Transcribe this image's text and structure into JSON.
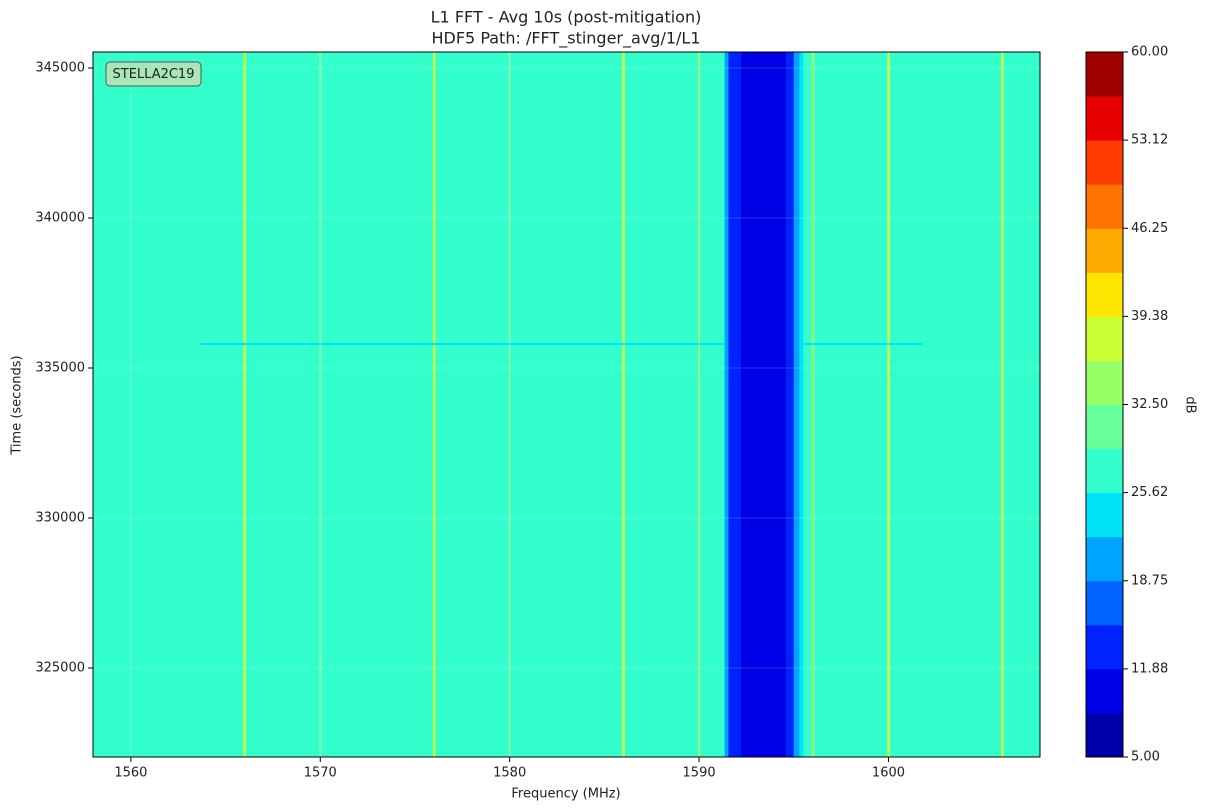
{
  "chart_data": {
    "type": "heatmap",
    "title": "L1 FFT - Avg 10s (post-mitigation)",
    "subtitle": "HDF5 Path: /FFT_stinger_avg/1/L1",
    "x_label": "Frequency (MHz)",
    "y_label": "Time (seconds)",
    "colorbar_label": "dB",
    "annotation": "STELLA2C19",
    "xlim": [
      1558,
      1608
    ],
    "xticks": [
      1560,
      1570,
      1580,
      1590,
      1600
    ],
    "ylim": [
      322033,
      345533
    ],
    "yticks": [
      325000,
      330000,
      335000,
      340000,
      345000
    ],
    "grid": true,
    "x_edges": [
      1558,
      1565.95,
      1566.08,
      1569.95,
      1570.05,
      1575.95,
      1576.08,
      1579.95,
      1580.05,
      1585.95,
      1586.08,
      1589.95,
      1590.05,
      1591.35,
      1591.55,
      1592.2,
      1594.6,
      1595.0,
      1595.3,
      1595.5,
      1595.95,
      1596.08,
      1599.95,
      1600.08,
      1605.95,
      1606.08,
      1608
    ],
    "values": [
      28,
      37,
      28,
      31,
      28,
      37,
      28,
      31,
      28,
      38,
      28,
      34,
      28,
      21,
      14,
      10,
      15,
      19,
      23,
      28,
      34,
      28,
      38,
      28,
      38,
      28
    ],
    "streak": {
      "y": 335800,
      "x": [
        1563.7,
        1601.8
      ],
      "value": 24
    },
    "clim": [
      5,
      60
    ],
    "colors": [
      "#0000aa",
      "#0000e6",
      "#0022ff",
      "#0062ff",
      "#00a4ff",
      "#00e4f8",
      "#33ffcc",
      "#66ff99",
      "#99ff66",
      "#ccff33",
      "#ffe600",
      "#ffaa00",
      "#ff7300",
      "#ff3c00",
      "#e60000",
      "#a00000"
    ],
    "cticks": [
      {
        "value": 5,
        "label": "5.00"
      },
      {
        "value": 11.875,
        "label": "11.88"
      },
      {
        "value": 18.75,
        "label": "18.75"
      },
      {
        "value": 25.625,
        "label": "25.62"
      },
      {
        "value": 32.5,
        "label": "32.50"
      },
      {
        "value": 39.375,
        "label": "39.38"
      },
      {
        "value": 46.25,
        "label": "46.25"
      },
      {
        "value": 53.125,
        "label": "53.12"
      },
      {
        "value": 60,
        "label": "60.00"
      }
    ]
  }
}
